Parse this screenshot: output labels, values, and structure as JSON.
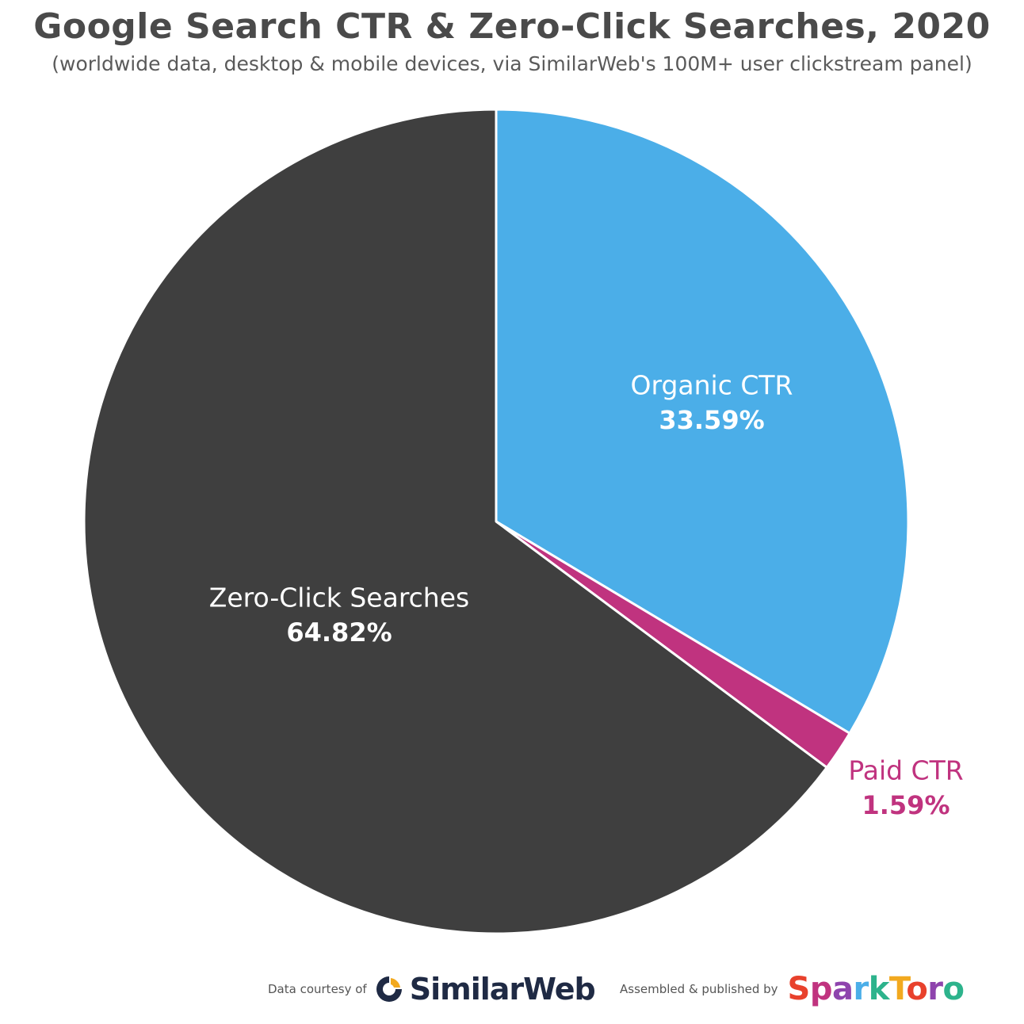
{
  "chart_data": {
    "type": "pie",
    "title": "Google Search CTR & Zero-Click Searches, 2020",
    "subtitle": "(worldwide data, desktop & mobile devices, via SimilarWeb's 100M+ user clickstream panel)",
    "slices": [
      {
        "label": "Organic CTR",
        "value": 33.59,
        "value_label": "33.59%",
        "color": "#4BAEE8",
        "text_color": "#ffffff"
      },
      {
        "label": "Paid CTR",
        "value": 1.59,
        "value_label": "1.59%",
        "color": "#C0337F",
        "text_color": "#C0337F"
      },
      {
        "label": "Zero-Click Searches",
        "value": 64.82,
        "value_label": "64.82%",
        "color": "#3F3F3F",
        "text_color": "#ffffff"
      }
    ],
    "start_angle": "12 o'clock, clockwise",
    "legend": "none"
  },
  "footer": {
    "data_courtesy": "Data courtesy of",
    "similarweb": "SimilarWeb",
    "assembled": "Assembled & published by",
    "sparktoro": "SparkToro",
    "sparktoro_colors": [
      "#E8412C",
      "#C0337F",
      "#8E44AD",
      "#4BAEE8",
      "#2DB38C",
      "#F2A91F",
      "#E8412C",
      "#8E44AD",
      "#2DB38C"
    ]
  }
}
